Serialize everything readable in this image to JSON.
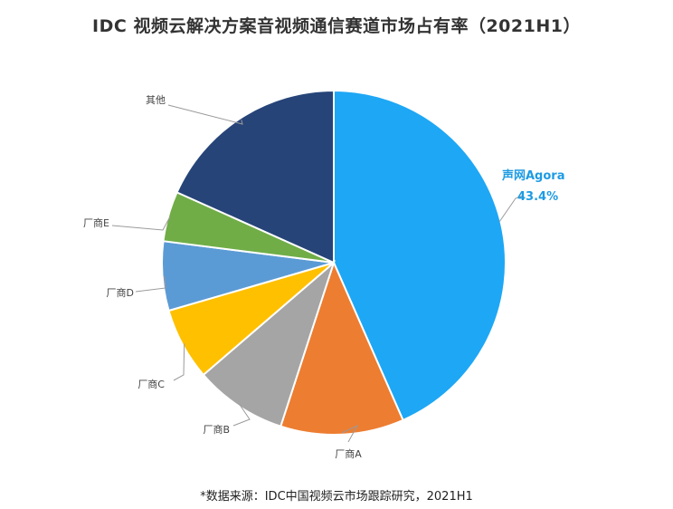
{
  "chart_data": {
    "type": "pie",
    "title": "IDC 视频云解决方案音视频通信赛道市场占有率（2021H1）",
    "source": "*数据来源：IDC中国视频云市场跟踪研究，2021H1",
    "start_angle_deg": 0,
    "direction": "clockwise",
    "slices": [
      {
        "label": "声网Agora",
        "value": 43.4,
        "value_label": "43.4%",
        "color": "#1EA7F5",
        "label_color": "#1E9BE3"
      },
      {
        "label": "厂商A",
        "value": 11.6,
        "value_label": "",
        "color": "#ED7D31",
        "label_color": "#444444"
      },
      {
        "label": "厂商B",
        "value": 8.7,
        "value_label": "",
        "color": "#A5A5A5",
        "label_color": "#444444"
      },
      {
        "label": "厂商C",
        "value": 6.8,
        "value_label": "",
        "color": "#FFC000",
        "label_color": "#444444"
      },
      {
        "label": "厂商D",
        "value": 6.5,
        "value_label": "",
        "color": "#5B9BD5",
        "label_color": "#444444"
      },
      {
        "label": "厂商E",
        "value": 4.7,
        "value_label": "",
        "color": "#70AD47",
        "label_color": "#444444"
      },
      {
        "label": "其他",
        "value": 18.3,
        "value_label": "",
        "color": "#264478",
        "label_color": "#444444"
      }
    ]
  }
}
